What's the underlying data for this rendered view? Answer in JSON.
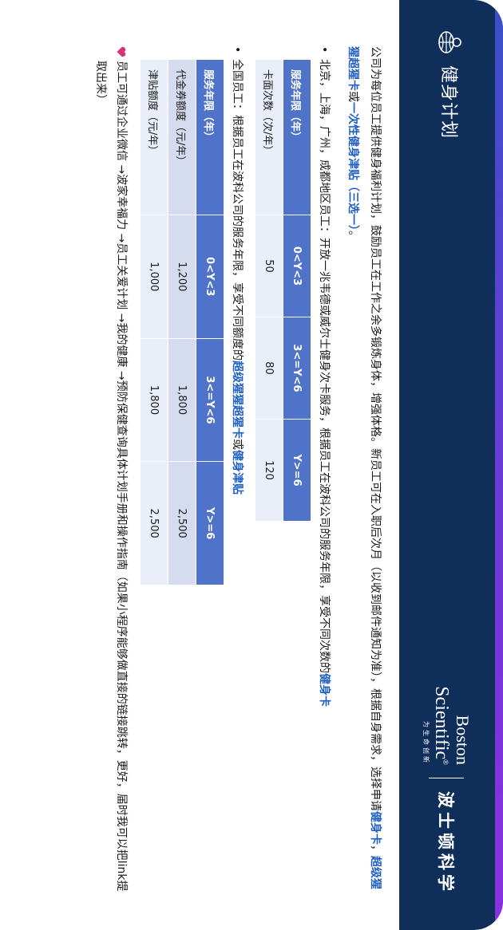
{
  "header": {
    "title": "健身计划",
    "logo_en_line1": "Boston",
    "logo_en_line2": "Scientific",
    "logo_reg": "®",
    "logo_tagline": "为生命创新",
    "logo_cn": "波士顿科学",
    "icon": "fitness-globe-icon"
  },
  "intro": {
    "text1": "公司为每位员工提供健身福利计划，鼓励员工在工作之余多锻炼身体，增强体格。新员工可在入职后次月（以收到邮件通知为准），根据自身需求，选择申请",
    "hl1": "健身卡",
    "sep1": "，",
    "hl2": "超级猩猩超猩卡",
    "sep2": "或",
    "hl3": "一次性健身津贴（三选一）",
    "end": "。"
  },
  "bullet1": {
    "text": "北京，上海，广州，成都地区员工：开放一兆韦德或威尔士健身次卡服务，根据员工在波科公司的服务年限，享受不同次数的",
    "hl": "健身卡"
  },
  "table1": {
    "headers": [
      "服务年限（年）",
      "0<Y<3",
      "3<=Y<6",
      "Y>=6"
    ],
    "row": [
      "卡面次数（次/年）",
      "50",
      "80",
      "120"
    ]
  },
  "bullet2": {
    "text": "全国员工：根据员工在波科公司的服务年限，享受不同额度的",
    "hl1": "超级猩猩超猩卡",
    "mid": "或",
    "hl2": "健身津贴"
  },
  "table2": {
    "headers": [
      "服务年限（年）",
      "0<Y<3",
      "3<=Y<6",
      "Y>=6"
    ],
    "row1": [
      "代金券额度（元/年）",
      "1,200",
      "1,800",
      "2,500"
    ],
    "row2": [
      "津贴额度（元/年）",
      "1,000",
      "1,800",
      "2,500"
    ]
  },
  "note": {
    "text": "员工可通过企业微信 →波家幸福力 →员工关爱计划 →我的健康 →预防保健查询具体计划手册和操作指南（如果小程序能够做直接的链接跳转，更好，届时我可以把link提取出来）",
    "icon": "heart-icon"
  },
  "colors": {
    "header_bg": "#0f2e5a",
    "table_header": "#4f73c8",
    "highlight": "#1f5fc4",
    "heart": "#d6337a"
  }
}
